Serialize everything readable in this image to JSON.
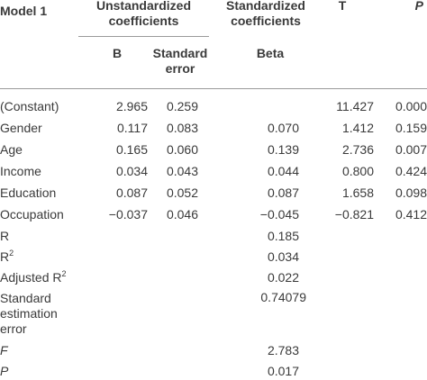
{
  "header": {
    "model": "Model 1",
    "unstd_line1": "Unstandardized",
    "unstd_line2": "coefficients",
    "std_line1": "Standardized",
    "std_line2": "coefficients",
    "t": "T",
    "p": "P",
    "b": "B",
    "se_line1": "Standard",
    "se_line2": "error",
    "beta": "Beta"
  },
  "rows": [
    {
      "label": "(Constant)",
      "b": "2.965",
      "se": "0.259",
      "beta": "",
      "t": "11.427",
      "p": "0.000"
    },
    {
      "label": "Gender",
      "b": "0.117",
      "se": "0.083",
      "beta": "0.070",
      "t": "1.412",
      "p": "0.159"
    },
    {
      "label": "Age",
      "b": "0.165",
      "se": "0.060",
      "beta": "0.139",
      "t": "2.736",
      "p": "0.007"
    },
    {
      "label": "Income",
      "b": "0.034",
      "se": "0.043",
      "beta": "0.044",
      "t": "0.800",
      "p": "0.424"
    },
    {
      "label": "Education",
      "b": "0.087",
      "se": "0.052",
      "beta": "0.087",
      "t": "1.658",
      "p": "0.098"
    },
    {
      "label": "Occupation",
      "b": "−0.037",
      "se": "0.046",
      "beta": "−0.045",
      "t": "−0.821",
      "p": "0.412"
    }
  ],
  "stats": {
    "r_label": "R",
    "r_value": "0.185",
    "r2_label": "R",
    "r2_sup": "2",
    "r2_value": "0.034",
    "adj_label": "Adjusted R",
    "adj_sup": "2",
    "adj_value": "0.022",
    "see_line1": "Standard",
    "see_line2": "estimation",
    "see_line3": "error",
    "see_value": "0.74079",
    "f_label": "F",
    "f_value": "2.783",
    "p_label": "P",
    "p_value": "0.017"
  }
}
